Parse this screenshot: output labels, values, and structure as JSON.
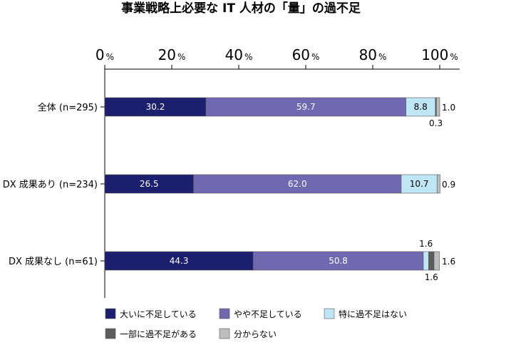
{
  "chart_data": {
    "type": "bar",
    "orientation": "horizontal",
    "stacked": true,
    "title": "事業戦略上必要な IT 人材の「量」の過不足",
    "xlim": [
      0,
      100
    ],
    "xticks": [
      {
        "num": "0",
        "unit": "%"
      },
      {
        "num": "20",
        "unit": "%"
      },
      {
        "num": "40",
        "unit": "%"
      },
      {
        "num": "60",
        "unit": "%"
      },
      {
        "num": "80",
        "unit": "%"
      },
      {
        "num": "100",
        "unit": "%"
      }
    ],
    "categories": [
      "全体 (n=295)",
      "DX 成果あり (n=234)",
      "DX 成果なし (n=61)"
    ],
    "series": [
      {
        "name": "大いに不足している",
        "color": "#1b1f6e",
        "values": [
          30.2,
          26.5,
          44.3
        ],
        "labels": [
          "30.2",
          "26.5",
          "44.3"
        ]
      },
      {
        "name": "やや不足している",
        "color": "#7068b0",
        "values": [
          59.7,
          62.0,
          50.8
        ],
        "labels": [
          "59.7",
          "62.0",
          "50.8"
        ]
      },
      {
        "name": "特に過不足はない",
        "color": "#bfe6f5",
        "values": [
          8.8,
          10.7,
          1.6
        ],
        "labels": [
          "8.8",
          "10.7",
          "1.6"
        ]
      },
      {
        "name": "一部に過不足がある",
        "color": "#5c5c5c",
        "values": [
          0.3,
          0.0,
          1.6
        ],
        "labels": [
          "0.3",
          "",
          "1.6"
        ]
      },
      {
        "name": "分からない",
        "color": "#bdbdbd",
        "values": [
          1.0,
          0.9,
          1.6
        ],
        "labels": [
          "1.0",
          "0.9",
          "1.6"
        ]
      }
    ],
    "legend_position": "bottom",
    "grid": false
  }
}
